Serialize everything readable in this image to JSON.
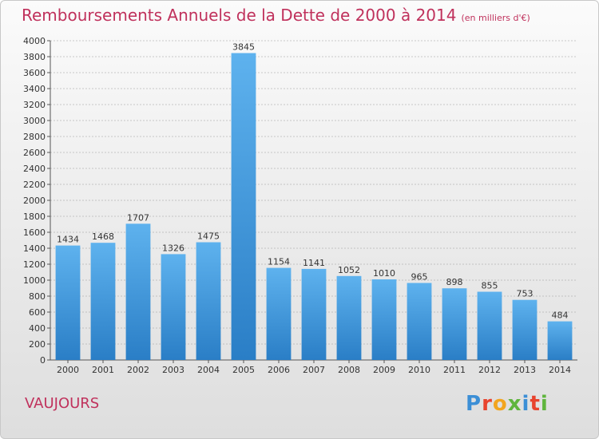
{
  "header": {
    "title": "Remboursements Annuels de la Dette de 2000 à 2014",
    "subtitle": "(en milliers d'€)"
  },
  "footer": {
    "city": "VAUJOURS",
    "logo_text": "Proxiti",
    "logo_colors": [
      "#3c8fd6",
      "#e8432e",
      "#f2a51f",
      "#5fb53d",
      "#3c8fd6",
      "#e8432e",
      "#5fb53d"
    ]
  },
  "colors": {
    "bar_top": "#5eb2ee",
    "bar_bottom": "#2a7ec6",
    "title": "#c0315c",
    "grid": "#9a9a9a"
  },
  "chart_data": {
    "type": "bar",
    "categories": [
      "2000",
      "2001",
      "2002",
      "2003",
      "2004",
      "2005",
      "2006",
      "2007",
      "2008",
      "2009",
      "2010",
      "2011",
      "2012",
      "2013",
      "2014"
    ],
    "values": [
      1434,
      1468,
      1707,
      1326,
      1475,
      3845,
      1154,
      1141,
      1052,
      1010,
      965,
      898,
      855,
      753,
      484
    ],
    "ylim": [
      0,
      4000
    ],
    "yticks": [
      0,
      200,
      400,
      600,
      800,
      1000,
      1200,
      1400,
      1600,
      1800,
      2000,
      2200,
      2400,
      2600,
      2800,
      3000,
      3200,
      3400,
      3600,
      3800,
      4000
    ],
    "grid": true,
    "data_labels": true
  }
}
